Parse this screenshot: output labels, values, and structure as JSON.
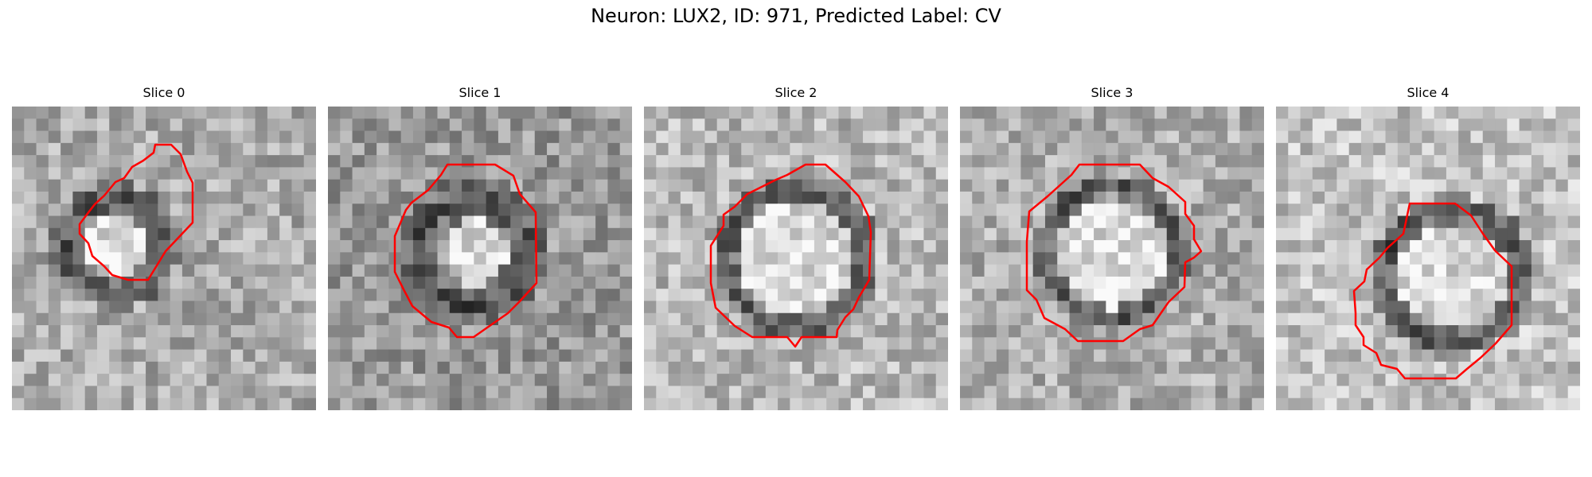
{
  "figure": {
    "title": "Neuron: LUX2, ID: 971, Predicted Label: CV"
  },
  "panels": [
    {
      "title": "Slice 0"
    },
    {
      "title": "Slice 1"
    },
    {
      "title": "Slice 2"
    },
    {
      "title": "Slice 3"
    },
    {
      "title": "Slice 4"
    }
  ],
  "colors": {
    "contour": "#ff0000",
    "background": "#ffffff"
  }
}
